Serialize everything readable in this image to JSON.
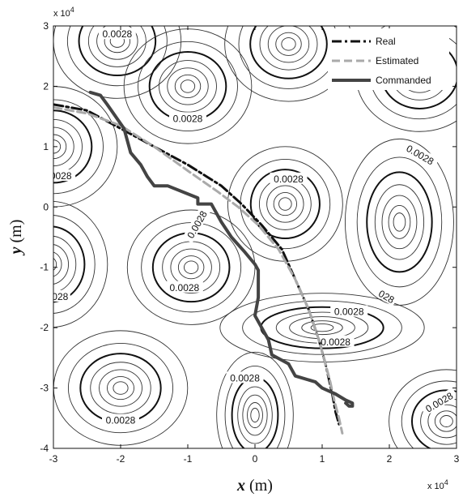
{
  "chart_data": {
    "type": "line",
    "title": "",
    "xlabel": {
      "var": "x",
      "unit": " (m)"
    },
    "ylabel": {
      "var": "y",
      "unit": " (m)"
    },
    "x_multiplier": "x 10",
    "x_multiplier_exp": "4",
    "y_multiplier": "x 10",
    "y_multiplier_exp": "4",
    "xlim": [
      -3,
      3
    ],
    "ylim": [
      -4,
      3
    ],
    "x_ticks": [
      "-3",
      "-2",
      "-1",
      "0",
      "1",
      "2",
      "3"
    ],
    "y_ticks": [
      "3",
      "2",
      "1",
      "0",
      "-1",
      "-2",
      "-3",
      "-4"
    ],
    "x_tick_values": [
      -3,
      -2,
      -1,
      0,
      1,
      2,
      3
    ],
    "y_tick_values": [
      3,
      2,
      1,
      0,
      -1,
      -2,
      -3,
      -4
    ],
    "legend_position": "top-right",
    "contour_label": "0.0028",
    "contour_label_display": [
      "0.0028",
      "0.0028",
      "0.0028",
      "0.0028",
      "0.0028",
      "0.0028",
      "0.0028",
      "0.0028",
      "0.0028",
      "0.0028",
      "0.0028",
      "0.0028",
      "028",
      "028"
    ],
    "contour_centers": [
      {
        "x": -2.05,
        "y": 2.75
      },
      {
        "x": -1.0,
        "y": 2.0
      },
      {
        "x": 0.5,
        "y": 2.7
      },
      {
        "x": 2.45,
        "y": 2.2
      },
      {
        "x": -3.0,
        "y": 1.0
      },
      {
        "x": 0.45,
        "y": 0.05
      },
      {
        "x": 2.15,
        "y": -0.25
      },
      {
        "x": -3.05,
        "y": -0.95
      },
      {
        "x": -0.95,
        "y": -1.0
      },
      {
        "x": 1.0,
        "y": -2.0
      },
      {
        "x": -2.0,
        "y": -3.0
      },
      {
        "x": 0.0,
        "y": -3.45
      },
      {
        "x": 2.85,
        "y": -3.55
      }
    ],
    "series": [
      {
        "name": "Real",
        "style": "dashdot",
        "color": "#111111",
        "x": [
          -3.0,
          -2.5,
          -2.0,
          -1.5,
          -1.0,
          -0.5,
          -0.2,
          0.1,
          0.4,
          0.6,
          0.8,
          0.95,
          1.05,
          1.1,
          1.15,
          1.2,
          1.25
        ],
        "y": [
          1.7,
          1.6,
          1.3,
          1.0,
          0.7,
          0.35,
          0.05,
          -0.3,
          -0.7,
          -1.2,
          -1.7,
          -2.2,
          -2.6,
          -2.85,
          -3.1,
          -3.4,
          -3.6
        ]
      },
      {
        "name": "Estimated",
        "style": "dashed",
        "color": "#aaaaaa",
        "x": [
          -3.0,
          -2.5,
          -2.0,
          -1.5,
          -1.0,
          -0.55,
          -0.25,
          0.05,
          0.35,
          0.6,
          0.8,
          0.95,
          1.05,
          1.12,
          1.18,
          1.25,
          1.3
        ],
        "y": [
          1.65,
          1.55,
          1.35,
          1.0,
          0.6,
          0.25,
          0.0,
          -0.3,
          -0.7,
          -1.2,
          -1.7,
          -2.2,
          -2.6,
          -2.9,
          -3.2,
          -3.5,
          -3.75
        ]
      },
      {
        "name": "Commanded",
        "style": "solid",
        "color": "#444444",
        "x": [
          -2.45,
          -2.3,
          -2.2,
          -1.95,
          -1.85,
          -1.7,
          -1.6,
          -1.5,
          -1.3,
          -0.85,
          -0.85,
          -0.65,
          -0.5,
          -0.35,
          -0.15,
          0.0,
          0.05,
          0.05,
          0.0,
          0.2,
          0.25,
          0.5,
          0.6,
          0.9,
          1.0,
          1.2,
          1.35,
          1.45,
          1.45,
          1.4,
          1.35
        ],
        "y": [
          1.9,
          1.85,
          1.7,
          1.3,
          0.9,
          0.7,
          0.5,
          0.35,
          0.35,
          0.15,
          0.05,
          0.05,
          -0.25,
          -0.5,
          -0.75,
          -0.95,
          -1.05,
          -1.5,
          -1.8,
          -2.2,
          -2.45,
          -2.6,
          -2.8,
          -2.9,
          -3.0,
          -3.1,
          -3.2,
          -3.25,
          -3.3,
          -3.3,
          -3.25
        ]
      }
    ]
  }
}
